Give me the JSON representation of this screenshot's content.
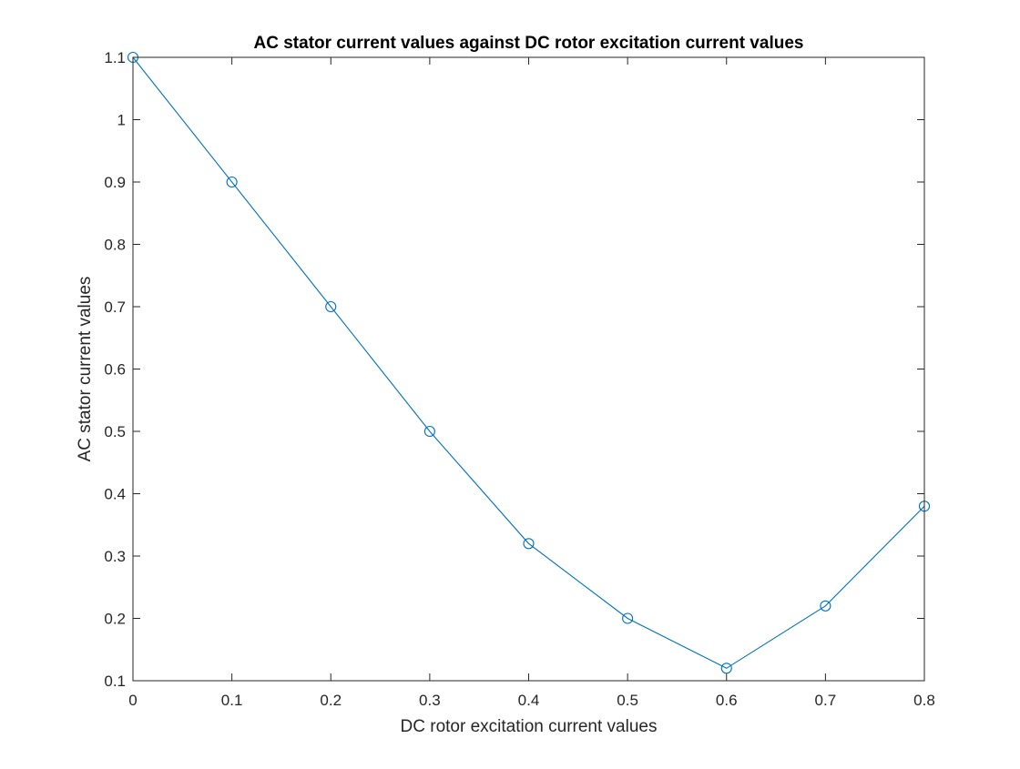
{
  "chart_data": {
    "type": "line",
    "title": "AC stator current values against DC rotor excitation current values",
    "xlabel": "DC rotor excitation current values",
    "ylabel": "AC stator current values",
    "xlim": [
      0,
      0.8
    ],
    "ylim": [
      0.1,
      1.1
    ],
    "xticks": [
      "0",
      "0.1",
      "0.2",
      "0.3",
      "0.4",
      "0.5",
      "0.6",
      "0.7",
      "0.8"
    ],
    "yticks": [
      "0.1",
      "0.2",
      "0.3",
      "0.4",
      "0.5",
      "0.6",
      "0.7",
      "0.8",
      "0.9",
      "1",
      "1.1"
    ],
    "grid": false,
    "marker": "circle",
    "series": [
      {
        "x": [
          0,
          0.1,
          0.2,
          0.3,
          0.4,
          0.5,
          0.6,
          0.7,
          0.8
        ],
        "y": [
          1.1,
          0.9,
          0.7,
          0.5,
          0.32,
          0.2,
          0.12,
          0.22,
          0.38
        ],
        "color": "#0072BD"
      }
    ]
  }
}
